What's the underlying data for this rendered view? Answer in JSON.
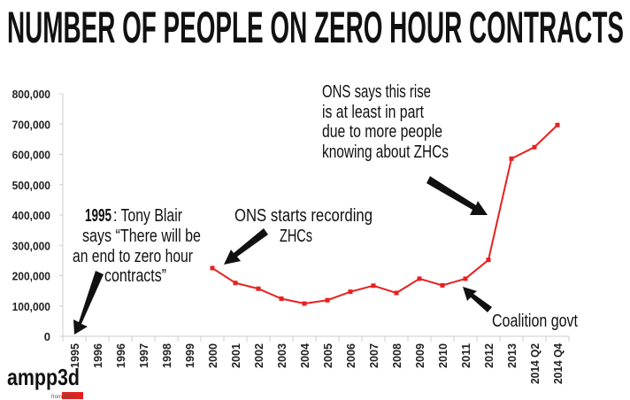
{
  "chart_data": {
    "type": "line",
    "title": "NUMBER OF PEOPLE ON ZERO HOUR CONTRACTS",
    "xlabel": "",
    "ylabel": "",
    "ylim": [
      0,
      800000
    ],
    "grid": false,
    "y_ticks": [
      "0",
      "100,000",
      "200,000",
      "300,000",
      "400,000",
      "500,000",
      "600,000",
      "700,000",
      "800,000"
    ],
    "y_tick_values": [
      0,
      100000,
      200000,
      300000,
      400000,
      500000,
      600000,
      700000,
      800000
    ],
    "categories": [
      "1995",
      "1996",
      "1996",
      "1997",
      "1998",
      "1999",
      "2000",
      "2001",
      "2002",
      "2003",
      "2004",
      "2005",
      "2006",
      "2007",
      "2008",
      "2009",
      "2010",
      "2011",
      "2012",
      "2013",
      "2014 Q2",
      "2014 Q4"
    ],
    "series": [
      {
        "name": "Zero hour contracts",
        "color": "#e8201f",
        "values": [
          null,
          null,
          null,
          null,
          null,
          null,
          225000,
          176000,
          157000,
          124000,
          108000,
          119000,
          147000,
          167000,
          143000,
          190000,
          168000,
          190000,
          252000,
          586000,
          624000,
          697000
        ]
      }
    ],
    "annotations": {
      "blair_year": "1995",
      "blair_line1": ": Tony Blair",
      "blair_line2": "says “There will be",
      "blair_line3": "an end to zero hour",
      "blair_line4": "contracts”",
      "ons_start_line1": "ONS starts recording",
      "ons_start_line2": "ZHCs",
      "ons_rise_line1": "ONS says this rise",
      "ons_rise_line2": "is at least in part",
      "ons_rise_line3": "due to more people",
      "ons_rise_line4": "knowing about ZHCs",
      "coalition": "Coalition govt"
    }
  },
  "logo": {
    "name": "ampp3d",
    "sub": "from Mirror"
  }
}
